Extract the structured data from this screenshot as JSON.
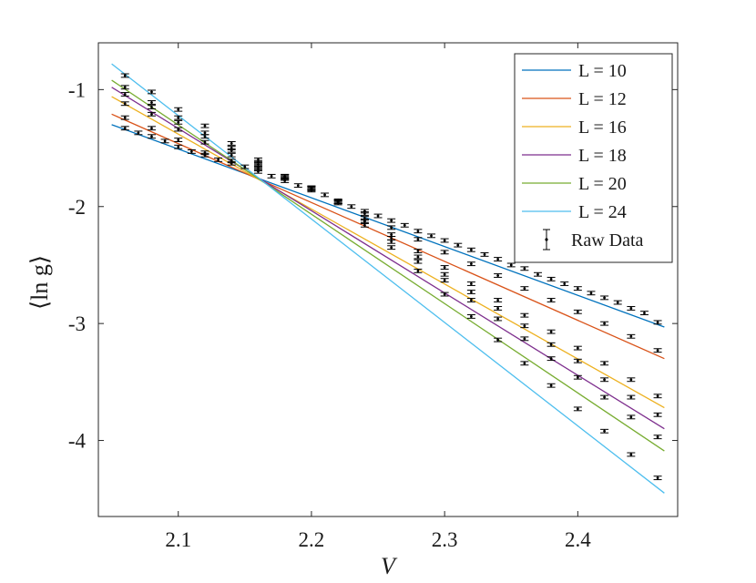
{
  "chart_data": {
    "type": "line",
    "title": "",
    "xlabel": "V",
    "ylabel": "⟨ln g⟩",
    "xlim": [
      2.04,
      2.475
    ],
    "ylim": [
      -4.65,
      -0.6
    ],
    "xticks": [
      2.1,
      2.2,
      2.3,
      2.4
    ],
    "xtick_labels": [
      "2.1",
      "2.2",
      "2.3",
      "2.4"
    ],
    "yticks": [
      -1,
      -2,
      -3,
      -4
    ],
    "ytick_labels": [
      "-1",
      "-2",
      "-3",
      "-4"
    ],
    "grid": false,
    "legend_position": "top-right",
    "fit_x_range": [
      2.05,
      2.465
    ],
    "series": [
      {
        "name": "L = 10",
        "label_var": "L",
        "label_val": "10",
        "color": "#0072BD",
        "fit": {
          "y_at_start": -1.3,
          "y_at_end": -3.03
        },
        "points": [
          [
            2.06,
            -1.33
          ],
          [
            2.07,
            -1.37
          ],
          [
            2.08,
            -1.4
          ],
          [
            2.09,
            -1.44
          ],
          [
            2.1,
            -1.49
          ],
          [
            2.11,
            -1.53
          ],
          [
            2.12,
            -1.56
          ],
          [
            2.13,
            -1.6
          ],
          [
            2.14,
            -1.63
          ],
          [
            2.15,
            -1.66
          ],
          [
            2.16,
            -1.7
          ],
          [
            2.17,
            -1.74
          ],
          [
            2.18,
            -1.78
          ],
          [
            2.19,
            -1.82
          ],
          [
            2.2,
            -1.86
          ],
          [
            2.21,
            -1.9
          ],
          [
            2.22,
            -1.95
          ],
          [
            2.23,
            -2.0
          ],
          [
            2.24,
            -2.04
          ],
          [
            2.25,
            -2.08
          ],
          [
            2.26,
            -2.12
          ],
          [
            2.27,
            -2.16
          ],
          [
            2.28,
            -2.21
          ],
          [
            2.29,
            -2.25
          ],
          [
            2.3,
            -2.29
          ],
          [
            2.31,
            -2.33
          ],
          [
            2.32,
            -2.37
          ],
          [
            2.33,
            -2.41
          ],
          [
            2.34,
            -2.45
          ],
          [
            2.35,
            -2.5
          ],
          [
            2.36,
            -2.53
          ],
          [
            2.37,
            -2.58
          ],
          [
            2.38,
            -2.62
          ],
          [
            2.39,
            -2.66
          ],
          [
            2.4,
            -2.7
          ],
          [
            2.41,
            -2.74
          ],
          [
            2.42,
            -2.78
          ],
          [
            2.43,
            -2.82
          ],
          [
            2.44,
            -2.87
          ],
          [
            2.45,
            -2.91
          ],
          [
            2.46,
            -2.99
          ]
        ]
      },
      {
        "name": "L = 12",
        "label_var": "L",
        "label_val": "12",
        "color": "#D95319",
        "fit": {
          "y_at_start": -1.21,
          "y_at_end": -3.3
        },
        "points": [
          [
            2.06,
            -1.24
          ],
          [
            2.08,
            -1.33
          ],
          [
            2.1,
            -1.43
          ],
          [
            2.12,
            -1.54
          ],
          [
            2.14,
            -1.61
          ],
          [
            2.16,
            -1.68
          ],
          [
            2.18,
            -1.76
          ],
          [
            2.2,
            -1.85
          ],
          [
            2.22,
            -1.96
          ],
          [
            2.24,
            -2.06
          ],
          [
            2.26,
            -2.18
          ],
          [
            2.28,
            -2.28
          ],
          [
            2.3,
            -2.39
          ],
          [
            2.32,
            -2.49
          ],
          [
            2.34,
            -2.59
          ],
          [
            2.36,
            -2.7
          ],
          [
            2.38,
            -2.8
          ],
          [
            2.4,
            -2.9
          ],
          [
            2.42,
            -3.0
          ],
          [
            2.44,
            -3.11
          ],
          [
            2.46,
            -3.23
          ]
        ]
      },
      {
        "name": "L = 16",
        "label_var": "L",
        "label_val": "16",
        "color": "#EDB120",
        "fit": {
          "y_at_start": -1.06,
          "y_at_end": -3.72
        },
        "points": [
          [
            2.06,
            -1.12
          ],
          [
            2.08,
            -1.21
          ],
          [
            2.1,
            -1.34
          ],
          [
            2.12,
            -1.45
          ],
          [
            2.14,
            -1.56
          ],
          [
            2.16,
            -1.66
          ],
          [
            2.18,
            -1.76
          ],
          [
            2.2,
            -1.84
          ],
          [
            2.22,
            -1.96
          ],
          [
            2.24,
            -2.1
          ],
          [
            2.26,
            -2.24
          ],
          [
            2.28,
            -2.38
          ],
          [
            2.3,
            -2.52
          ],
          [
            2.32,
            -2.66
          ],
          [
            2.34,
            -2.8
          ],
          [
            2.36,
            -2.93
          ],
          [
            2.38,
            -3.07
          ],
          [
            2.4,
            -3.21
          ],
          [
            2.42,
            -3.34
          ],
          [
            2.44,
            -3.48
          ],
          [
            2.46,
            -3.62
          ]
        ]
      },
      {
        "name": "L = 18",
        "label_var": "L",
        "label_val": "18",
        "color": "#7E2F8E",
        "fit": {
          "y_at_start": -0.98,
          "y_at_end": -3.9
        },
        "points": [
          [
            2.06,
            -1.04
          ],
          [
            2.08,
            -1.15
          ],
          [
            2.1,
            -1.28
          ],
          [
            2.12,
            -1.4
          ],
          [
            2.14,
            -1.52
          ],
          [
            2.16,
            -1.64
          ],
          [
            2.18,
            -1.75
          ],
          [
            2.2,
            -1.84
          ],
          [
            2.22,
            -1.96
          ],
          [
            2.24,
            -2.12
          ],
          [
            2.26,
            -2.27
          ],
          [
            2.28,
            -2.43
          ],
          [
            2.3,
            -2.58
          ],
          [
            2.32,
            -2.73
          ],
          [
            2.34,
            -2.87
          ],
          [
            2.36,
            -3.02
          ],
          [
            2.38,
            -3.18
          ],
          [
            2.4,
            -3.32
          ],
          [
            2.42,
            -3.48
          ],
          [
            2.44,
            -3.63
          ],
          [
            2.46,
            -3.78
          ]
        ]
      },
      {
        "name": "L = 20",
        "label_var": "L",
        "label_val": "20",
        "color": "#77AC30",
        "fit": {
          "y_at_start": -0.92,
          "y_at_end": -4.09
        },
        "points": [
          [
            2.06,
            -0.98
          ],
          [
            2.08,
            -1.11
          ],
          [
            2.1,
            -1.24
          ],
          [
            2.12,
            -1.37
          ],
          [
            2.14,
            -1.5
          ],
          [
            2.16,
            -1.62
          ],
          [
            2.18,
            -1.74
          ],
          [
            2.2,
            -1.84
          ],
          [
            2.22,
            -1.96
          ],
          [
            2.24,
            -2.13
          ],
          [
            2.26,
            -2.3
          ],
          [
            2.28,
            -2.47
          ],
          [
            2.3,
            -2.63
          ],
          [
            2.32,
            -2.8
          ],
          [
            2.34,
            -2.96
          ],
          [
            2.36,
            -3.13
          ],
          [
            2.38,
            -3.3
          ],
          [
            2.4,
            -3.46
          ],
          [
            2.42,
            -3.63
          ],
          [
            2.44,
            -3.8
          ],
          [
            2.46,
            -3.97
          ]
        ]
      },
      {
        "name": "L = 24",
        "label_var": "L",
        "label_val": "24",
        "color": "#4DBEEE",
        "fit": {
          "y_at_start": -0.78,
          "y_at_end": -4.45
        },
        "points": [
          [
            2.06,
            -0.88
          ],
          [
            2.08,
            -1.02
          ],
          [
            2.1,
            -1.17
          ],
          [
            2.12,
            -1.31
          ],
          [
            2.14,
            -1.46
          ],
          [
            2.16,
            -1.6
          ],
          [
            2.18,
            -1.74
          ],
          [
            2.2,
            -1.84
          ],
          [
            2.22,
            -1.97
          ],
          [
            2.24,
            -2.16
          ],
          [
            2.26,
            -2.35
          ],
          [
            2.28,
            -2.55
          ],
          [
            2.3,
            -2.75
          ],
          [
            2.32,
            -2.94
          ],
          [
            2.34,
            -3.14
          ],
          [
            2.36,
            -3.34
          ],
          [
            2.38,
            -3.53
          ],
          [
            2.4,
            -3.73
          ],
          [
            2.42,
            -3.92
          ],
          [
            2.44,
            -4.12
          ],
          [
            2.46,
            -4.32
          ]
        ]
      }
    ],
    "raw_data_legend": "Raw Data",
    "raw_data_color": "#000000",
    "error_bar_halfwidth": 0.015
  }
}
